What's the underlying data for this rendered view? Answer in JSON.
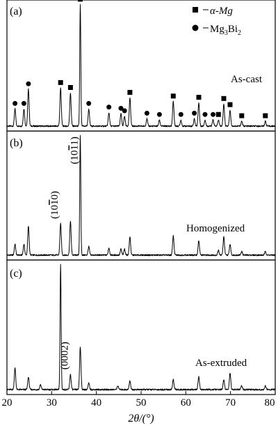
{
  "chart_data": {
    "type": "line",
    "x_axis": {
      "label": "2θ/(°)",
      "range": [
        20,
        80
      ],
      "ticks": [
        20,
        30,
        40,
        50,
        60,
        70,
        80
      ]
    },
    "legend": [
      {
        "marker": "square",
        "text": "α-Mg"
      },
      {
        "marker": "circle",
        "text": "Mg3Bi2"
      }
    ],
    "panels": [
      {
        "label": "(a)",
        "condition": "As-cast",
        "baseline": 0.06,
        "peaks": [
          {
            "x": 21.8,
            "h": 0.14,
            "phase": "Mg3Bi2"
          },
          {
            "x": 23.8,
            "h": 0.14,
            "phase": "Mg3Bi2"
          },
          {
            "x": 24.8,
            "h": 0.3,
            "phase": "Mg3Bi2"
          },
          {
            "x": 32.0,
            "h": 0.31,
            "phase": "α-Mg"
          },
          {
            "x": 34.2,
            "h": 0.27,
            "phase": "α-Mg"
          },
          {
            "x": 36.4,
            "h": 0.99,
            "phase": "α-Mg"
          },
          {
            "x": 38.3,
            "h": 0.14,
            "phase": "Mg3Bi2"
          },
          {
            "x": 42.8,
            "h": 0.11,
            "phase": "Mg3Bi2"
          },
          {
            "x": 45.5,
            "h": 0.1,
            "phase": "Mg3Bi2"
          },
          {
            "x": 46.3,
            "h": 0.08,
            "phase": "Mg3Bi2"
          },
          {
            "x": 47.5,
            "h": 0.23,
            "phase": "α-Mg"
          },
          {
            "x": 51.3,
            "h": 0.06,
            "phase": "Mg3Bi2"
          },
          {
            "x": 54.1,
            "h": 0.05,
            "phase": "Mg3Bi2"
          },
          {
            "x": 57.2,
            "h": 0.2,
            "phase": "α-Mg"
          },
          {
            "x": 58.9,
            "h": 0.05,
            "phase": "Mg3Bi2"
          },
          {
            "x": 61.9,
            "h": 0.06,
            "phase": "Mg3Bi2"
          },
          {
            "x": 62.9,
            "h": 0.19,
            "phase": "α-Mg"
          },
          {
            "x": 64.3,
            "h": 0.05,
            "phase": "Mg3Bi2"
          },
          {
            "x": 66.1,
            "h": 0.05,
            "phase": "Mg3Bi2"
          },
          {
            "x": 67.3,
            "h": 0.05,
            "phase": "α-Mg"
          },
          {
            "x": 68.5,
            "h": 0.18,
            "phase": "α-Mg"
          },
          {
            "x": 69.9,
            "h": 0.13,
            "phase": "α-Mg"
          },
          {
            "x": 72.5,
            "h": 0.04,
            "phase": "α-Mg"
          },
          {
            "x": 77.8,
            "h": 0.04,
            "phase": "α-Mg"
          }
        ],
        "markers": [
          {
            "x": 21.8,
            "phase": "Mg3Bi2"
          },
          {
            "x": 23.8,
            "phase": "Mg3Bi2"
          },
          {
            "x": 24.8,
            "phase": "Mg3Bi2"
          },
          {
            "x": 32.0,
            "phase": "α-Mg"
          },
          {
            "x": 34.2,
            "phase": "α-Mg"
          },
          {
            "x": 36.4,
            "phase": "α-Mg"
          },
          {
            "x": 38.3,
            "phase": "Mg3Bi2"
          },
          {
            "x": 42.8,
            "phase": "Mg3Bi2"
          },
          {
            "x": 45.5,
            "phase": "Mg3Bi2"
          },
          {
            "x": 46.3,
            "phase": "Mg3Bi2"
          },
          {
            "x": 47.5,
            "phase": "α-Mg"
          },
          {
            "x": 51.3,
            "phase": "Mg3Bi2"
          },
          {
            "x": 54.1,
            "phase": "Mg3Bi2"
          },
          {
            "x": 57.2,
            "phase": "α-Mg"
          },
          {
            "x": 58.9,
            "phase": "Mg3Bi2"
          },
          {
            "x": 61.9,
            "phase": "Mg3Bi2"
          },
          {
            "x": 62.9,
            "phase": "α-Mg"
          },
          {
            "x": 64.3,
            "phase": "Mg3Bi2"
          },
          {
            "x": 66.1,
            "phase": "Mg3Bi2"
          },
          {
            "x": 67.3,
            "phase": "α-Mg"
          },
          {
            "x": 68.5,
            "phase": "α-Mg"
          },
          {
            "x": 69.9,
            "phase": "α-Mg"
          },
          {
            "x": 72.5,
            "phase": "α-Mg"
          },
          {
            "x": 77.8,
            "phase": "α-Mg"
          }
        ],
        "plane_labels": []
      },
      {
        "label": "(b)",
        "condition": "Homogenized",
        "baseline": 0.06,
        "peaks": [
          {
            "x": 21.8,
            "h": 0.09
          },
          {
            "x": 23.8,
            "h": 0.09
          },
          {
            "x": 24.8,
            "h": 0.24
          },
          {
            "x": 32.0,
            "h": 0.26
          },
          {
            "x": 34.2,
            "h": 0.28
          },
          {
            "x": 36.4,
            "h": 0.99
          },
          {
            "x": 38.3,
            "h": 0.07
          },
          {
            "x": 42.8,
            "h": 0.06
          },
          {
            "x": 45.5,
            "h": 0.05
          },
          {
            "x": 46.3,
            "h": 0.05
          },
          {
            "x": 47.5,
            "h": 0.15
          },
          {
            "x": 57.2,
            "h": 0.16
          },
          {
            "x": 62.9,
            "h": 0.12
          },
          {
            "x": 67.3,
            "h": 0.04
          },
          {
            "x": 68.5,
            "h": 0.15
          },
          {
            "x": 69.9,
            "h": 0.09
          },
          {
            "x": 72.5,
            "h": 0.03
          },
          {
            "x": 77.8,
            "h": 0.03
          }
        ],
        "markers": [],
        "plane_labels": [
          {
            "x": 32.0,
            "text": "(1010)",
            "overbar_digit": 2
          },
          {
            "x": 36.4,
            "text": "(1011)",
            "overbar_digit": 2
          }
        ]
      },
      {
        "label": "(c)",
        "condition": "As-extruded",
        "baseline": 0.06,
        "peaks": [
          {
            "x": 21.8,
            "h": 0.17
          },
          {
            "x": 24.8,
            "h": 0.1
          },
          {
            "x": 27.5,
            "h": 0.04
          },
          {
            "x": 32.0,
            "h": 0.99
          },
          {
            "x": 34.2,
            "h": 0.12
          },
          {
            "x": 36.4,
            "h": 0.34
          },
          {
            "x": 38.3,
            "h": 0.05
          },
          {
            "x": 44.8,
            "h": 0.03
          },
          {
            "x": 47.5,
            "h": 0.07
          },
          {
            "x": 57.2,
            "h": 0.08
          },
          {
            "x": 62.9,
            "h": 0.1
          },
          {
            "x": 68.5,
            "h": 0.08
          },
          {
            "x": 69.9,
            "h": 0.13
          },
          {
            "x": 72.5,
            "h": 0.03
          },
          {
            "x": 77.8,
            "h": 0.03
          }
        ],
        "markers": [],
        "plane_labels": [
          {
            "x": 34.2,
            "text": "(0002)"
          }
        ]
      }
    ]
  }
}
